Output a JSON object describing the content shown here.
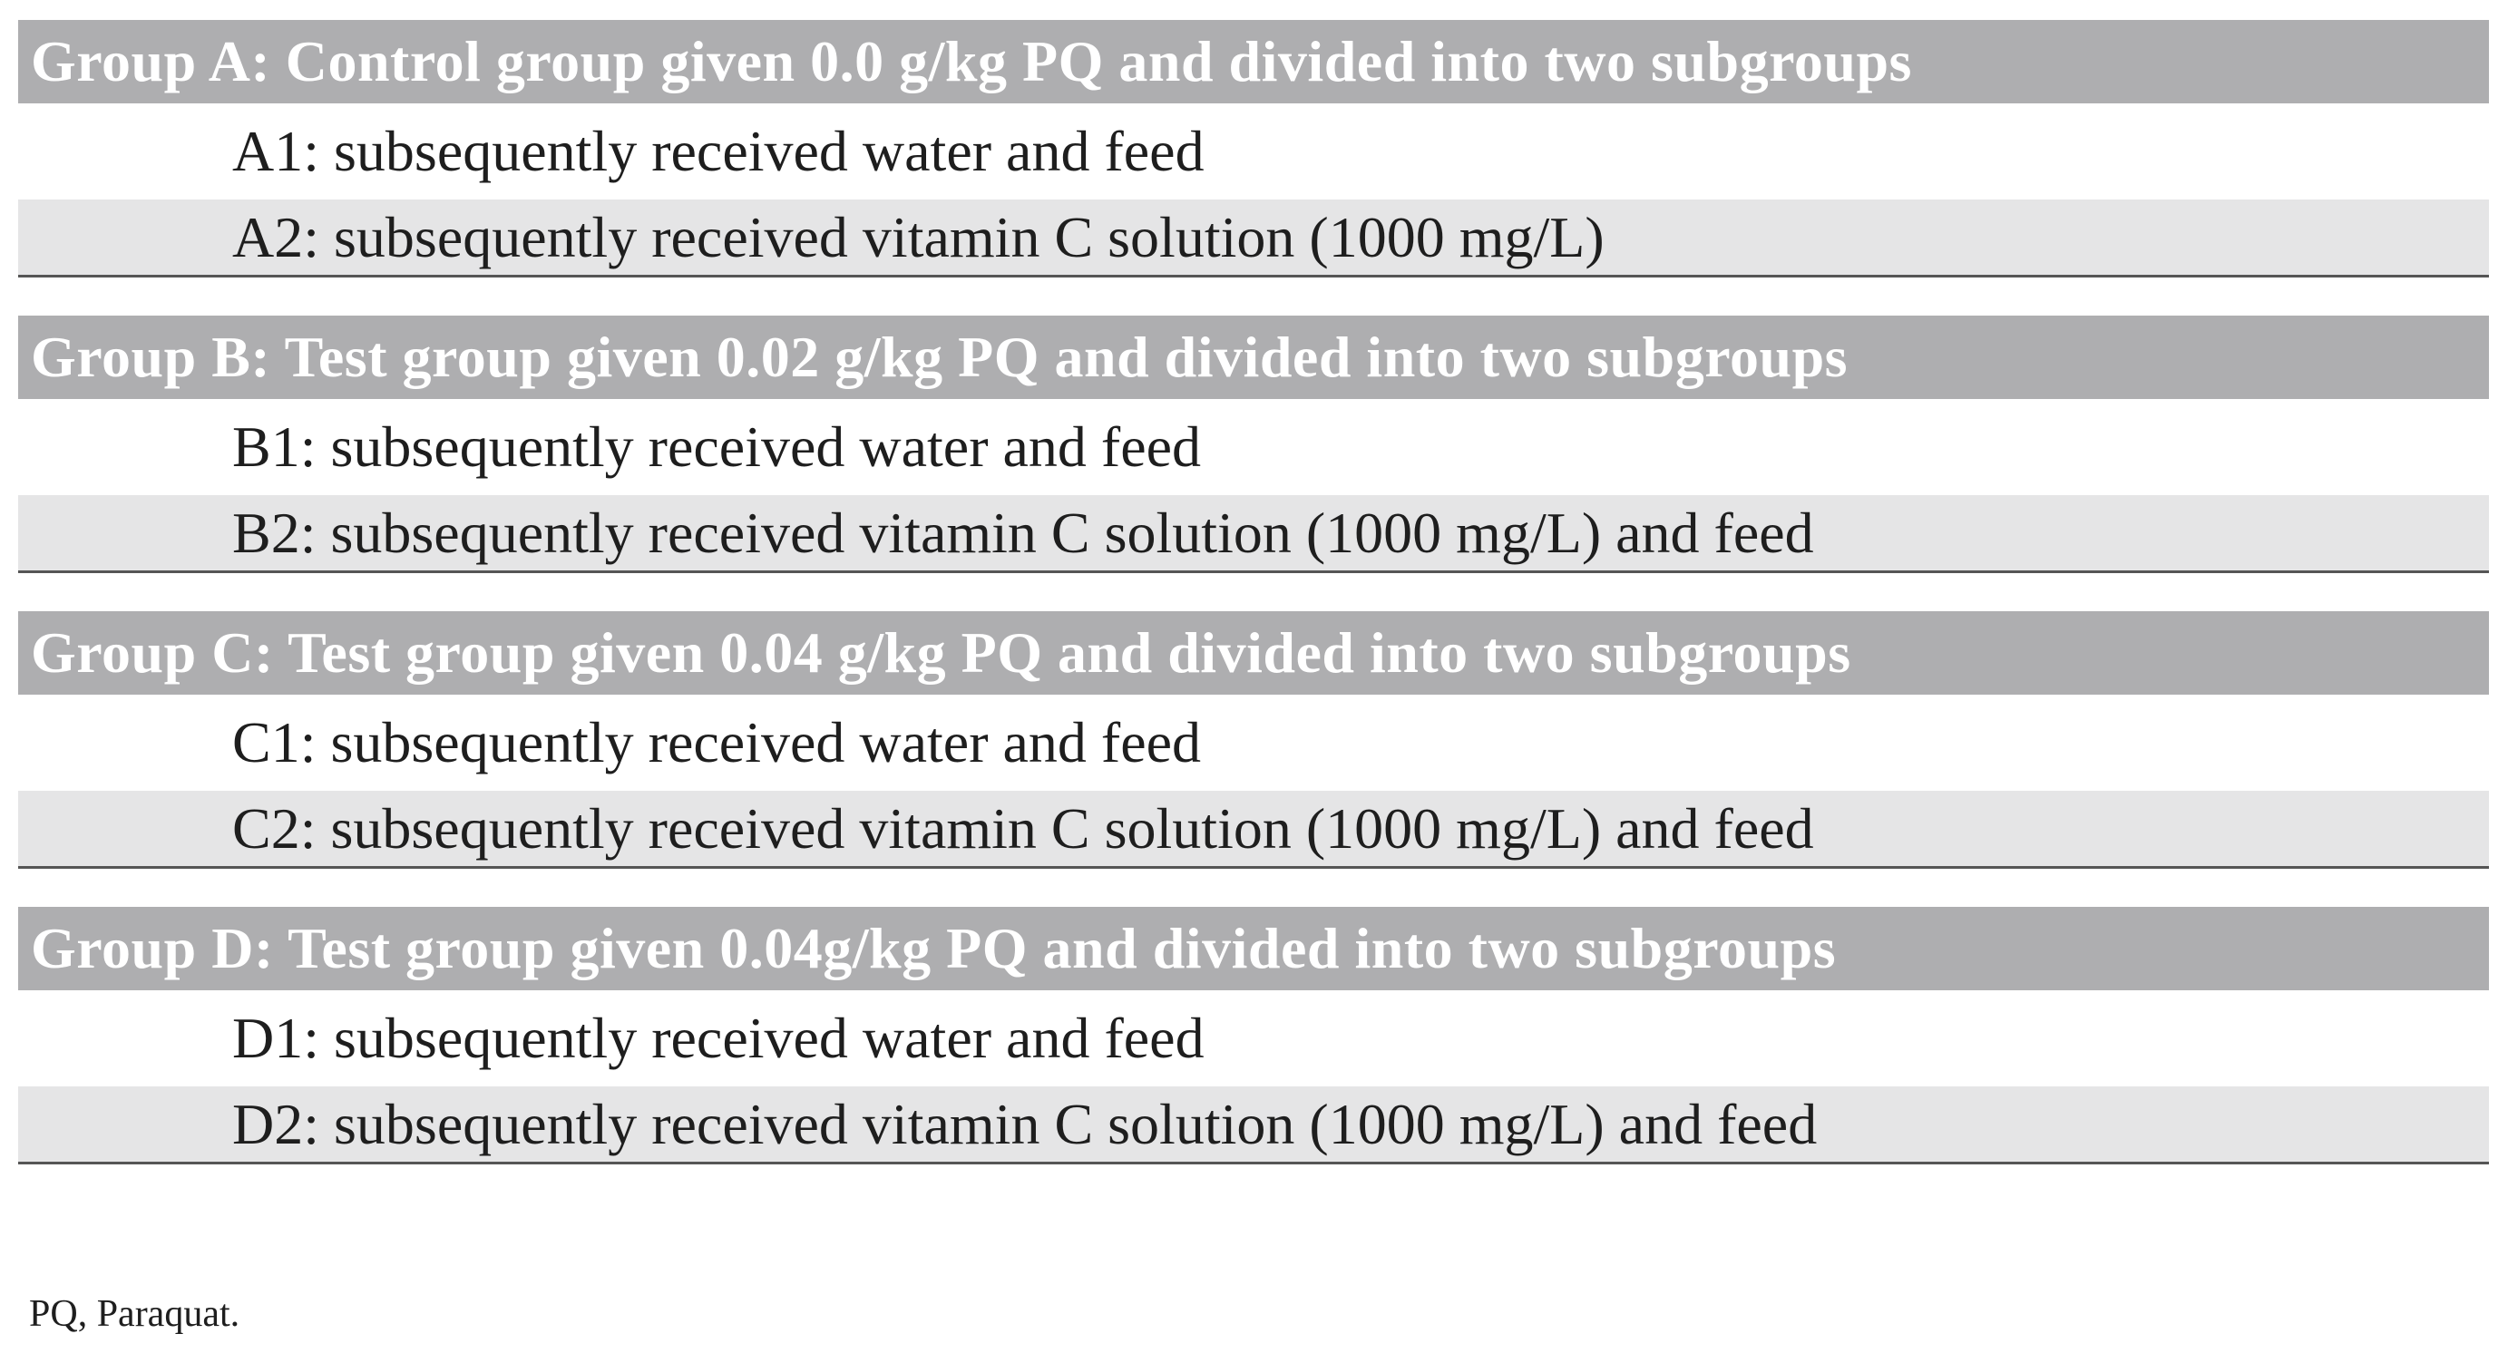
{
  "groups": [
    {
      "header": "Group A: Control group given 0.0 g/kg PQ and divided into two subgroups",
      "rows": [
        "A1: subsequently received water and feed",
        "A2: subsequently received vitamin C solution (1000 mg/L)"
      ]
    },
    {
      "header": "Group B: Test group given 0.02 g/kg PQ and divided into two subgroups",
      "rows": [
        "B1: subsequently received water and feed",
        "B2: subsequently received vitamin C solution (1000 mg/L) and feed"
      ]
    },
    {
      "header": "Group C: Test group given 0.04 g/kg PQ and divided into two subgroups",
      "rows": [
        "C1: subsequently received water and feed",
        "C2: subsequently received vitamin C solution (1000 mg/L) and feed"
      ]
    },
    {
      "header": "Group D: Test group given 0.04g/kg PQ and divided into two subgroups",
      "rows": [
        "D1: subsequently received water and feed",
        "D2: subsequently received vitamin C solution (1000 mg/L) and feed"
      ]
    }
  ],
  "footnote": "PQ, Paraquat."
}
